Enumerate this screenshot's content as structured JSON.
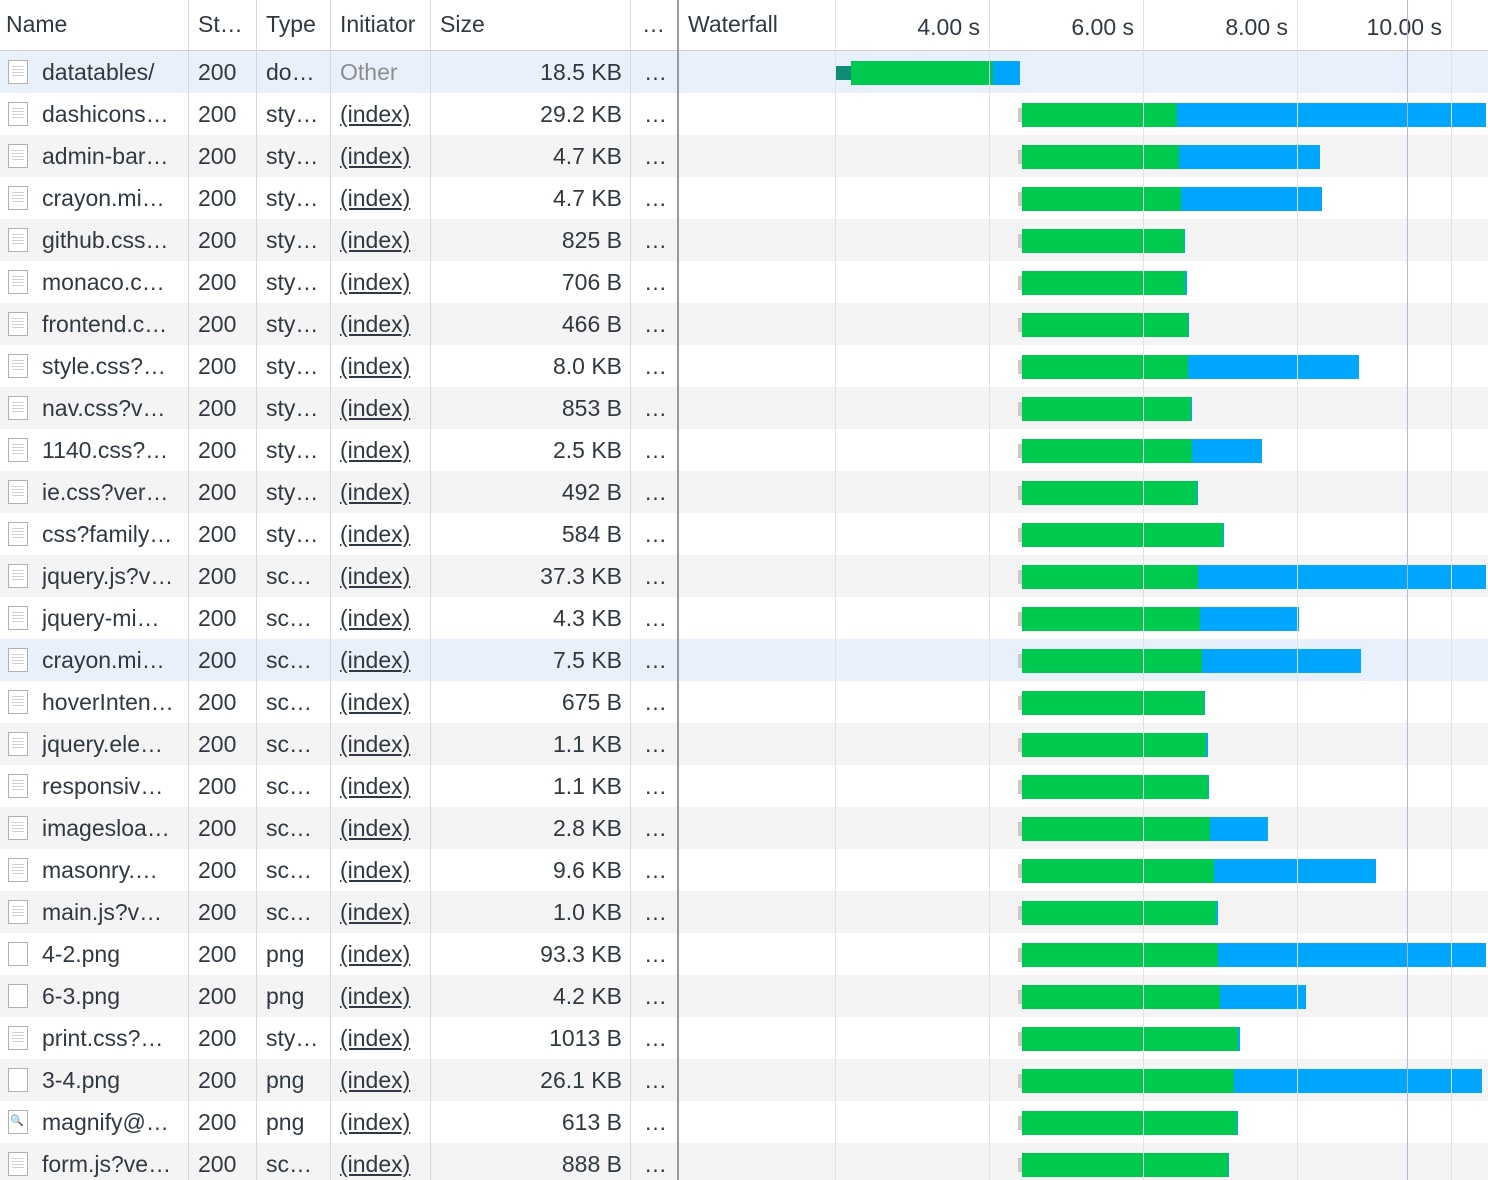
{
  "columns": {
    "name": "Name",
    "status": "St…",
    "type": "Type",
    "initiator": "Initiator",
    "size": "Size",
    "more": "…",
    "waterfall": "Waterfall"
  },
  "waterfall_ticks": [
    "4.00 s",
    "6.00 s",
    "8.00 s",
    "10.00 s"
  ],
  "colors": {
    "waiting_ttfb": "#00c94f",
    "content_download": "#00a6ff",
    "selected_row": "#e8f0fb",
    "marker_line": "#b9b3e6"
  },
  "requests": [
    {
      "name": "datatables/",
      "status": "200",
      "type": "do…",
      "initiator": "Other",
      "size": "18.5 KB",
      "more": "…",
      "icon": "document-icon",
      "start_s": 2.0,
      "ttfb_end_s": 4.05,
      "end_s": 4.4
    },
    {
      "name": "dashicons…",
      "status": "200",
      "type": "sty…",
      "initiator": "(index)",
      "size": "29.2 KB",
      "more": "…",
      "icon": "file-icon",
      "start_s": 4.43,
      "ttfb_end_s": 6.44,
      "end_s": 10.5
    },
    {
      "name": "admin-bar…",
      "status": "200",
      "type": "sty…",
      "initiator": "(index)",
      "size": "4.7 KB",
      "more": "…",
      "icon": "file-icon",
      "start_s": 4.43,
      "ttfb_end_s": 6.47,
      "end_s": 8.3
    },
    {
      "name": "crayon.mi…",
      "status": "200",
      "type": "sty…",
      "initiator": "(index)",
      "size": "4.7 KB",
      "more": "…",
      "icon": "file-icon",
      "start_s": 4.43,
      "ttfb_end_s": 6.49,
      "end_s": 8.33
    },
    {
      "name": "github.css…",
      "status": "200",
      "type": "sty…",
      "initiator": "(index)",
      "size": "825 B",
      "more": "…",
      "icon": "file-icon",
      "start_s": 4.43,
      "ttfb_end_s": 6.53,
      "end_s": 6.55
    },
    {
      "name": "monaco.c…",
      "status": "200",
      "type": "sty…",
      "initiator": "(index)",
      "size": "706 B",
      "more": "…",
      "icon": "file-icon",
      "start_s": 4.43,
      "ttfb_end_s": 6.55,
      "end_s": 6.57
    },
    {
      "name": "frontend.c…",
      "status": "200",
      "type": "sty…",
      "initiator": "(index)",
      "size": "466 B",
      "more": "…",
      "icon": "file-icon",
      "start_s": 4.43,
      "ttfb_end_s": 6.58,
      "end_s": 6.6
    },
    {
      "name": "style.css?…",
      "status": "200",
      "type": "sty…",
      "initiator": "(index)",
      "size": "8.0 KB",
      "more": "…",
      "icon": "file-icon",
      "start_s": 4.43,
      "ttfb_end_s": 6.58,
      "end_s": 8.8
    },
    {
      "name": "nav.css?v…",
      "status": "200",
      "type": "sty…",
      "initiator": "(index)",
      "size": "853 B",
      "more": "…",
      "icon": "file-icon",
      "start_s": 4.43,
      "ttfb_end_s": 6.62,
      "end_s": 6.64
    },
    {
      "name": "1140.css?…",
      "status": "200",
      "type": "sty…",
      "initiator": "(index)",
      "size": "2.5 KB",
      "more": "…",
      "icon": "file-icon",
      "start_s": 4.43,
      "ttfb_end_s": 6.64,
      "end_s": 7.54
    },
    {
      "name": "ie.css?ver…",
      "status": "200",
      "type": "sty…",
      "initiator": "(index)",
      "size": "492 B",
      "more": "…",
      "icon": "file-icon",
      "start_s": 4.43,
      "ttfb_end_s": 6.7,
      "end_s": 6.72
    },
    {
      "name": "css?family…",
      "status": "200",
      "type": "sty…",
      "initiator": "(index)",
      "size": "584 B",
      "more": "…",
      "icon": "file-icon",
      "start_s": 4.43,
      "ttfb_end_s": 7.04,
      "end_s": 7.05
    },
    {
      "name": "jquery.js?v…",
      "status": "200",
      "type": "sc…",
      "initiator": "(index)",
      "size": "37.3 KB",
      "more": "…",
      "icon": "file-icon",
      "start_s": 4.43,
      "ttfb_end_s": 6.72,
      "end_s": 10.88
    },
    {
      "name": "jquery-mi…",
      "status": "200",
      "type": "sc…",
      "initiator": "(index)",
      "size": "4.3 KB",
      "more": "…",
      "icon": "file-icon",
      "start_s": 4.43,
      "ttfb_end_s": 6.74,
      "end_s": 8.02
    },
    {
      "name": "crayon.mi…",
      "status": "200",
      "type": "sc…",
      "initiator": "(index)",
      "size": "7.5 KB",
      "more": "…",
      "icon": "file-icon",
      "start_s": 4.43,
      "ttfb_end_s": 6.77,
      "end_s": 8.83,
      "selected": true
    },
    {
      "name": "hoverInten…",
      "status": "200",
      "type": "sc…",
      "initiator": "(index)",
      "size": "675 B",
      "more": "…",
      "icon": "file-icon",
      "start_s": 4.43,
      "ttfb_end_s": 6.79,
      "end_s": 6.81
    },
    {
      "name": "jquery.ele…",
      "status": "200",
      "type": "sc…",
      "initiator": "(index)",
      "size": "1.1 KB",
      "more": "…",
      "icon": "file-icon",
      "start_s": 4.43,
      "ttfb_end_s": 6.82,
      "end_s": 6.84
    },
    {
      "name": "responsiv…",
      "status": "200",
      "type": "sc…",
      "initiator": "(index)",
      "size": "1.1 KB",
      "more": "…",
      "icon": "file-icon",
      "start_s": 4.43,
      "ttfb_end_s": 6.84,
      "end_s": 6.86
    },
    {
      "name": "imagesloa…",
      "status": "200",
      "type": "sc…",
      "initiator": "(index)",
      "size": "2.8 KB",
      "more": "…",
      "icon": "file-icon",
      "start_s": 4.43,
      "ttfb_end_s": 6.87,
      "end_s": 7.62
    },
    {
      "name": "masonry.…",
      "status": "200",
      "type": "sc…",
      "initiator": "(index)",
      "size": "9.6 KB",
      "more": "…",
      "icon": "file-icon",
      "start_s": 4.43,
      "ttfb_end_s": 6.92,
      "end_s": 9.03
    },
    {
      "name": "main.js?v…",
      "status": "200",
      "type": "sc…",
      "initiator": "(index)",
      "size": "1.0 KB",
      "more": "…",
      "icon": "file-icon",
      "start_s": 4.43,
      "ttfb_end_s": 6.95,
      "end_s": 6.97
    },
    {
      "name": "4-2.png",
      "status": "200",
      "type": "png",
      "initiator": "(index)",
      "size": "93.3 KB",
      "more": "…",
      "icon": "image-icon",
      "start_s": 4.43,
      "ttfb_end_s": 6.97,
      "end_s": 12.0
    },
    {
      "name": "6-3.png",
      "status": "200",
      "type": "png",
      "initiator": "(index)",
      "size": "4.2 KB",
      "more": "…",
      "icon": "image-icon",
      "start_s": 4.43,
      "ttfb_end_s": 7.0,
      "end_s": 8.12
    },
    {
      "name": "print.css?…",
      "status": "200",
      "type": "sty…",
      "initiator": "(index)",
      "size": "1013 B",
      "more": "…",
      "icon": "file-icon",
      "start_s": 4.43,
      "ttfb_end_s": 7.24,
      "end_s": 7.26
    },
    {
      "name": "3-4.png",
      "status": "200",
      "type": "png",
      "initiator": "(index)",
      "size": "26.1 KB",
      "more": "…",
      "icon": "image-icon",
      "start_s": 4.43,
      "ttfb_end_s": 7.18,
      "end_s": 10.4
    },
    {
      "name": "magnify@…",
      "status": "200",
      "type": "png",
      "initiator": "(index)",
      "size": "613 B",
      "more": "…",
      "icon": "magnify-icon",
      "start_s": 4.43,
      "ttfb_end_s": 7.22,
      "end_s": 7.24
    },
    {
      "name": "form.js?ve…",
      "status": "200",
      "type": "sc…",
      "initiator": "(index)",
      "size": "888 B",
      "more": "…",
      "icon": "file-icon",
      "start_s": 4.43,
      "ttfb_end_s": 7.1,
      "end_s": 7.12
    }
  ]
}
